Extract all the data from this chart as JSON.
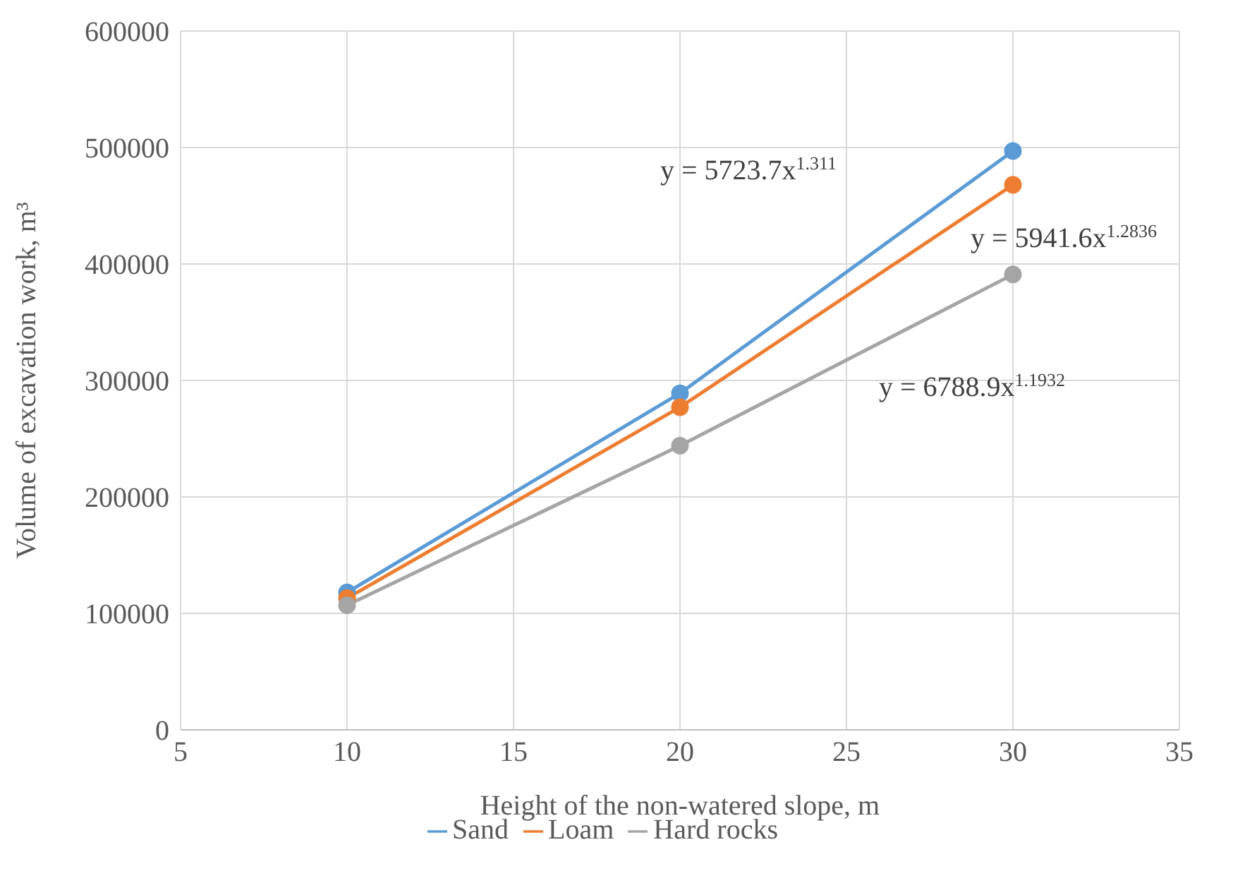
{
  "chart_data": {
    "type": "line",
    "xlabel": "Height of the non-watered slope, m",
    "ylabel": "Volume of excavation work, m³",
    "x": [
      10,
      20,
      30
    ],
    "series": [
      {
        "name": "Sand",
        "color": "#5b9bd5",
        "values": [
          118000,
          289000,
          497000
        ]
      },
      {
        "name": "Loam",
        "color": "#ed7d31",
        "values": [
          113000,
          277000,
          468000
        ]
      },
      {
        "name": "Hard rocks",
        "color": "#a5a5a5",
        "values": [
          107000,
          244000,
          391000
        ]
      }
    ],
    "xlim": [
      5,
      35
    ],
    "xticks": [
      5,
      10,
      15,
      20,
      25,
      30,
      35
    ],
    "ylim": [
      0,
      600000
    ],
    "yticks": [
      0,
      100000,
      200000,
      300000,
      400000,
      500000,
      600000
    ],
    "annotations": [
      "y = 5723.7x$^{1.311}$",
      "y = 5941.6x$^{1.2836}$",
      "y = 6788.9x$^{1.1932}$"
    ],
    "grid": true,
    "legend": "bottom",
    "marker": "circle",
    "line_style": "solid"
  }
}
